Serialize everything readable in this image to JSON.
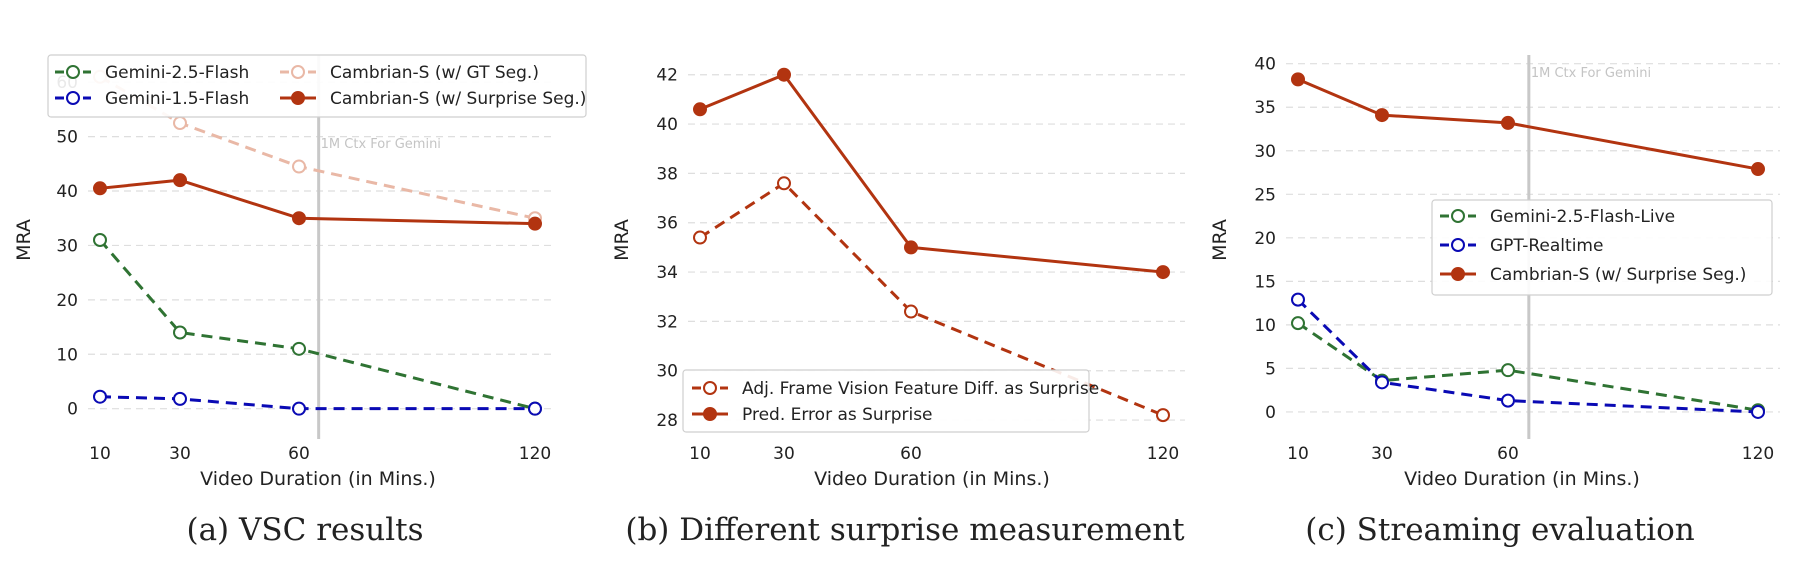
{
  "colors": {
    "green": "#2f7333",
    "blue": "#0a0ab4",
    "peach": "#e9b8a6",
    "red": "#b23410",
    "redDash": "#b23410",
    "grid": "#dedede",
    "vline": "#c8c8c8"
  },
  "chart_data": [
    {
      "type": "line",
      "caption": "(a) VSC results",
      "xlabel": "Video Duration (in Mins.)",
      "ylabel": "MRA",
      "x": [
        10,
        30,
        60,
        120
      ],
      "xticks": [
        "10",
        "30",
        "60",
        "120"
      ],
      "ylim": [
        -3,
        65
      ],
      "yticks": [
        0,
        10,
        20,
        30,
        40,
        50,
        60
      ],
      "grid": true,
      "legend_placement": "top",
      "vline": {
        "x": 65,
        "label": "1M Ctx For Gemini"
      },
      "series": [
        {
          "name": "Gemini-2.5-Flash",
          "values": [
            31,
            14,
            11,
            0
          ],
          "color": "green",
          "dashed": true,
          "filled": false
        },
        {
          "name": "Gemini-1.5-Flash",
          "values": [
            2.2,
            1.8,
            0,
            0
          ],
          "color": "blue",
          "dashed": true,
          "filled": false
        },
        {
          "name": "Cambrian-S (w/ GT Seg.)",
          "values": [
            61,
            52.5,
            44.5,
            35
          ],
          "color": "peach",
          "dashed": true,
          "filled": false
        },
        {
          "name": "Cambrian-S (w/ Surprise Seg.)",
          "values": [
            40.5,
            42,
            35,
            34
          ],
          "color": "red",
          "dashed": false,
          "filled": true
        }
      ]
    },
    {
      "type": "line",
      "caption": "(b) Different surprise measurement",
      "xlabel": "Video Duration (in Mins.)",
      "ylabel": "MRA",
      "x": [
        10,
        30,
        60,
        120
      ],
      "xticks": [
        "10",
        "30",
        "60",
        "120"
      ],
      "ylim": [
        27.8,
        42.8
      ],
      "yticks": [
        28,
        30,
        32,
        34,
        36,
        38,
        40,
        42
      ],
      "grid": true,
      "legend_placement": "lower-left",
      "series": [
        {
          "name": "Adj. Frame Vision Feature Diff. as Surprise",
          "values": [
            35.4,
            37.6,
            32.4,
            28.2
          ],
          "color": "redDash",
          "dashed": true,
          "filled": false
        },
        {
          "name": "Pred. Error as Surprise",
          "values": [
            40.6,
            42,
            35,
            34
          ],
          "color": "red",
          "dashed": false,
          "filled": true
        }
      ]
    },
    {
      "type": "line",
      "caption": "(c) Streaming evaluation",
      "xlabel": "Video Duration (in Mins.)",
      "ylabel": "MRA",
      "x": [
        10,
        30,
        60,
        120
      ],
      "xticks": [
        "10",
        "30",
        "60",
        "120"
      ],
      "ylim": [
        -1.5,
        41
      ],
      "yticks": [
        0,
        5,
        10,
        15,
        20,
        25,
        30,
        35,
        40
      ],
      "grid": true,
      "legend_placement": "right-middle",
      "vline": {
        "x": 65,
        "label": "1M Ctx For Gemini"
      },
      "series": [
        {
          "name": "Gemini-2.5-Flash-Live",
          "values": [
            10.2,
            3.6,
            4.8,
            0.2
          ],
          "color": "green",
          "dashed": true,
          "filled": false
        },
        {
          "name": "GPT-Realtime",
          "values": [
            12.9,
            3.4,
            1.3,
            0
          ],
          "color": "blue",
          "dashed": true,
          "filled": false
        },
        {
          "name": "Cambrian-S (w/ Surprise Seg.)",
          "values": [
            38.2,
            34.1,
            33.2,
            27.9
          ],
          "color": "red",
          "dashed": false,
          "filled": true
        }
      ]
    }
  ]
}
